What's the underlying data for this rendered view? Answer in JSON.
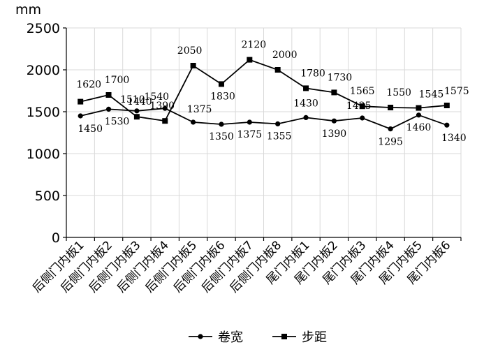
{
  "chart_data": {
    "type": "line",
    "title": "",
    "unit_label": "mm",
    "categories": [
      "后侧门内板1",
      "后侧门内板2",
      "后侧门内板3",
      "后侧门内板4",
      "后侧门内板5",
      "后侧门内板6",
      "后侧门内板7",
      "后侧门内板8",
      "尾门内板1",
      "尾门内板2",
      "尾门内板3",
      "尾门内板4",
      "尾门内板5",
      "尾门内板6"
    ],
    "series": [
      {
        "name": "卷宽",
        "marker": "circle",
        "values": [
          1450,
          1530,
          1510,
          1540,
          1375,
          1350,
          1375,
          1355,
          1430,
          1390,
          1425,
          1295,
          1460,
          1340
        ]
      },
      {
        "name": "步距",
        "marker": "square",
        "values": [
          1620,
          1700,
          1440,
          1390,
          2050,
          1830,
          2120,
          2000,
          1780,
          1730,
          1565,
          1550,
          1545,
          1575
        ]
      }
    ],
    "ylim": [
      0,
      2500
    ],
    "yticks": [
      0,
      500,
      1000,
      1500,
      2000,
      2500
    ],
    "grid": true,
    "legend_position": "bottom",
    "line_color": "#000000",
    "grid_color": "#d9d9d9"
  }
}
